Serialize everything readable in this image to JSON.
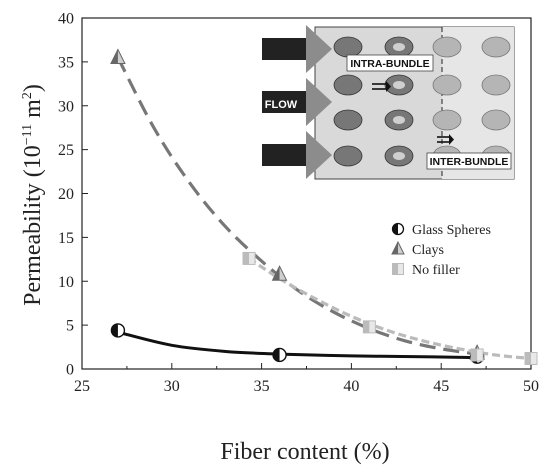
{
  "chart_data": {
    "type": "scatter",
    "xlabel": "Fiber content (%)",
    "ylabel_main": "Permeability (10",
    "ylabel_exp": "−11",
    "ylabel_unit": " m",
    "ylabel_exp2": "2",
    "ylabel_close": ")",
    "xlim": [
      25,
      50
    ],
    "ylim": [
      0,
      40
    ],
    "xticks": [
      25,
      30,
      35,
      40,
      45,
      50
    ],
    "yticks": [
      0,
      5,
      10,
      15,
      20,
      25,
      30,
      35,
      40
    ],
    "grid": false,
    "legend_position": "right",
    "series": [
      {
        "name": "Glass Spheres",
        "marker": "half-circle",
        "color": "#111111",
        "x": [
          27,
          36,
          47
        ],
        "y": [
          4.4,
          1.6,
          1.4
        ],
        "fit": {
          "style": "solid",
          "color": "#111111",
          "x": [
            27,
            30,
            33,
            36,
            40,
            44,
            47
          ],
          "y": [
            4.2,
            2.7,
            2.0,
            1.7,
            1.5,
            1.4,
            1.3
          ]
        }
      },
      {
        "name": "Clays",
        "marker": "half-triangle",
        "color": "#777777",
        "x": [
          27,
          36,
          47
        ],
        "y": [
          35.5,
          10.8,
          1.8
        ],
        "fit": {
          "style": "dash",
          "color": "#777777",
          "x": [
            27,
            29,
            31,
            33,
            35,
            37,
            39,
            41,
            43,
            45,
            47
          ],
          "y": [
            35.5,
            27.5,
            21.2,
            16.2,
            12.3,
            9.0,
            6.5,
            4.6,
            3.2,
            2.3,
            1.7
          ]
        }
      },
      {
        "name": "No filler",
        "marker": "half-square",
        "color": "#bbbbbb",
        "x": [
          34.3,
          41,
          47,
          50
        ],
        "y": [
          12.6,
          4.8,
          1.6,
          1.2
        ],
        "fit": {
          "style": "dot-dash",
          "color": "#bbbbbb",
          "x": [
            34.3,
            36,
            38,
            40,
            42,
            44,
            46,
            48,
            50
          ],
          "y": [
            12.6,
            10.3,
            8.0,
            6.0,
            4.4,
            3.2,
            2.3,
            1.6,
            1.2
          ]
        }
      }
    ]
  },
  "inset": {
    "intra_label": "INTRA-BUNDLE",
    "inter_label": "INTER-BUNDLE",
    "flow_label": "FLOW"
  }
}
